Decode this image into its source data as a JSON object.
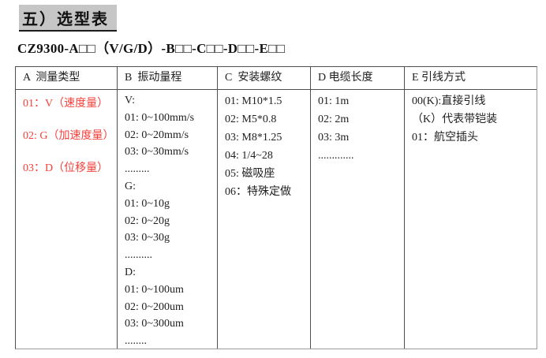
{
  "page": {
    "title": "五）选型表",
    "model_code": "CZ9300-A□□（V/G/D）-B□□-C□□-D□□-E□□"
  },
  "table": {
    "columns": [
      {
        "header": "A  测量类型",
        "lines": [
          "01：V（速度量）",
          "02: G（加速度量）",
          "03：D（位移量）"
        ],
        "text_color": "#f5413c"
      },
      {
        "header": "B  振动量程",
        "lines": [
          "V:",
          "01: 0~100mm/s",
          "02: 0~20mm/s",
          "03: 0~30mm/s",
          ".........",
          "G:",
          "01: 0~10g",
          "02: 0~20g",
          "03: 0~30g",
          "..........",
          "D:",
          "01: 0~100um",
          "02: 0~200um",
          "03: 0~300um",
          "........"
        ]
      },
      {
        "header": "C  安装螺纹",
        "lines": [
          "01: M10*1.5",
          "02: M5*0.8",
          "03: M8*1.25",
          "04: 1/4~28",
          "05: 磁吸座",
          "06：特殊定做"
        ]
      },
      {
        "header": "D 电缆长度",
        "lines": [
          "01: 1m",
          "02: 2m",
          "03: 3m",
          "............."
        ]
      },
      {
        "header": "E 引线方式",
        "lines": [
          "00(K):直接引线",
          "（K）代表带铠装",
          "01：航空插头"
        ]
      }
    ]
  },
  "colors": {
    "highlight": "#c6c6c6",
    "red_text": "#f5413c",
    "border_dark": "#4f4f4f",
    "border_light": "#9b9b9b"
  }
}
